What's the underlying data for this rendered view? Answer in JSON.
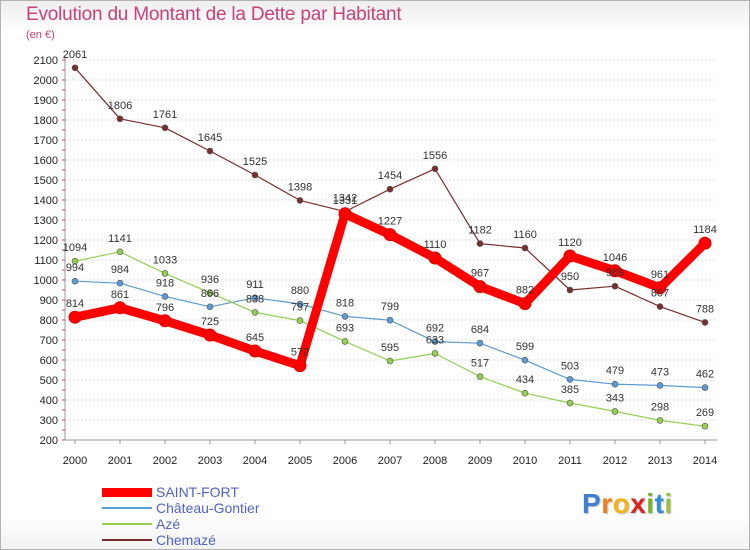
{
  "title": "Evolution du Montant de la Dette par Habitant",
  "unit": "(en €)",
  "brand": {
    "text": "Proxiti",
    "letters": [
      {
        "ch": "P",
        "color": "#3d7fd1"
      },
      {
        "ch": "r",
        "color": "#f07d1a"
      },
      {
        "ch": "o",
        "color": "#f5b31a"
      },
      {
        "ch": "x",
        "color": "#d8231f"
      },
      {
        "ch": "i",
        "color": "#7ab42a"
      },
      {
        "ch": "t",
        "color": "#2f8fd6"
      },
      {
        "ch": "i",
        "color": "#9ac13b"
      }
    ]
  },
  "chart_data": {
    "type": "line",
    "title": "Evolution du Montant de la Dette par Habitant",
    "ylabel": "(en €)",
    "categories": [
      "2000",
      "2001",
      "2002",
      "2003",
      "2004",
      "2005",
      "2006",
      "2007",
      "2008",
      "2009",
      "2010",
      "2011",
      "2012",
      "2013",
      "2014"
    ],
    "ylim": [
      200,
      2100
    ],
    "ytick_step": 100,
    "grid": "horizontal-dashed",
    "legend_position": "bottom-left",
    "series": [
      {
        "name": "SAINT-FORT",
        "color": "#ff0000",
        "thick": true,
        "values": [
          814,
          861,
          796,
          725,
          645,
          572,
          1331,
          1227,
          1110,
          967,
          882,
          1120,
          1046,
          961,
          1184
        ],
        "labels": [
          "814",
          "861",
          "796",
          "725",
          "645",
          "572",
          "1331",
          "1227",
          "1110",
          "967",
          "882",
          "1120",
          "1046",
          "961",
          "1184"
        ]
      },
      {
        "name": "Château-Gontier",
        "color": "#5b9bd5",
        "thick": false,
        "values": [
          994,
          984,
          918,
          866,
          911,
          880,
          818,
          799,
          692,
          684,
          599,
          503,
          479,
          473,
          462
        ],
        "labels": [
          "994",
          "984",
          "918",
          "866",
          "911",
          "880",
          "818",
          "799",
          "692",
          "684",
          "599",
          "503",
          "479",
          "473",
          "462"
        ]
      },
      {
        "name": "Azé",
        "color": "#92d050",
        "thick": false,
        "values": [
          1094,
          1141,
          1033,
          936,
          838,
          797,
          693,
          595,
          633,
          517,
          434,
          385,
          343,
          298,
          269
        ],
        "labels": [
          "1094",
          "1141",
          "1033",
          "936",
          "838",
          "797",
          "693",
          "595",
          "633",
          "517",
          "434",
          "385",
          "343",
          "298",
          "269"
        ]
      },
      {
        "name": "Chemazé",
        "color": "#7b2c2c",
        "thick": false,
        "values": [
          2061,
          1806,
          1761,
          1645,
          1525,
          1398,
          1342,
          1454,
          1556,
          1182,
          1160,
          950,
          969,
          867,
          788
        ],
        "labels": [
          "2061",
          "1806",
          "1761",
          "1645",
          "1525",
          "1398",
          "1342",
          "1454",
          "1556",
          "1182",
          "1160",
          "950",
          "969",
          "867",
          "788"
        ]
      }
    ]
  }
}
